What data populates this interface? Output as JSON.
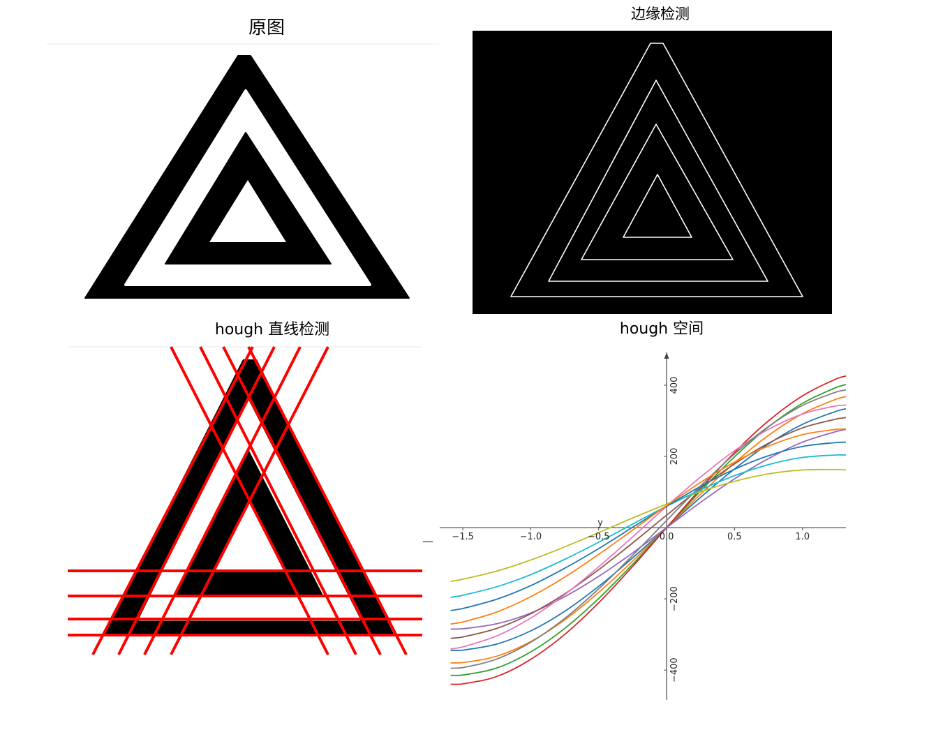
{
  "panels": {
    "original": {
      "title": "原图"
    },
    "edge_detection": {
      "title": "边缘检测"
    },
    "hough_lines": {
      "title": "hough 直线检测",
      "line_color": "#ff0000"
    }
  },
  "chart_data": {
    "type": "line",
    "title": "hough 空间",
    "xlim": [
      -1.67,
      1.32
    ],
    "ylim": [
      -484,
      492
    ],
    "grid": false,
    "legend": false,
    "x_ticks": [
      {
        "value": -1.5,
        "label": "−1.5"
      },
      {
        "value": -1.0,
        "label": "−1.0"
      },
      {
        "value": -0.5,
        "label": "−0.5"
      },
      {
        "value": 0,
        "label": "0.0"
      },
      {
        "value": 0.5,
        "label": "0.5"
      },
      {
        "value": 1.0,
        "label": "1.0"
      }
    ],
    "y_ticks": [
      {
        "value": 400,
        "label": "400"
      },
      {
        "value": 200,
        "label": "200"
      },
      {
        "value": -200,
        "label": "−200"
      },
      {
        "value": -400,
        "label": "−400"
      }
    ],
    "annotations": [
      "y",
      "—"
    ],
    "x": [
      -1.59,
      -1.5,
      -1.25,
      -1.0,
      -0.75,
      -0.5,
      -0.25,
      0,
      0.25,
      0.5,
      0.75,
      1.0,
      1.25,
      1.32
    ],
    "series": [
      {
        "color": "#1f77b4",
        "values": [
          -345,
          -344,
          -327,
          -290,
          -235,
          -165,
          -85,
          0,
          85,
          165,
          235,
          290,
          327,
          334
        ]
      },
      {
        "color": "#ff7f0e",
        "values": [
          -380,
          -379,
          -361,
          -320,
          -259,
          -182,
          -94,
          0,
          94,
          182,
          259,
          320,
          361,
          368
        ]
      },
      {
        "color": "#2ca02c",
        "values": [
          -415,
          -414,
          -394,
          -349,
          -283,
          -199,
          -103,
          0,
          103,
          199,
          283,
          349,
          394,
          402
        ]
      },
      {
        "color": "#d62728",
        "values": [
          -440,
          -439,
          -418,
          -370,
          -300,
          -211,
          -109,
          0,
          109,
          211,
          300,
          370,
          418,
          426
        ]
      },
      {
        "color": "#9467bd",
        "values": [
          -285,
          -284,
          -270,
          -240,
          -194,
          -137,
          -71,
          0,
          71,
          137,
          194,
          240,
          270,
          276
        ]
      },
      {
        "color": "#8c564b",
        "values": [
          -311,
          -307,
          -283,
          -242,
          -186,
          -118,
          -43,
          35,
          111,
          179,
          237,
          280,
          305,
          309
        ]
      },
      {
        "color": "#e377c2",
        "values": [
          -341,
          -335,
          -304,
          -254,
          -188,
          -110,
          -26,
          60,
          142,
          216,
          276,
          319,
          342,
          344
        ]
      },
      {
        "color": "#7f7f7f",
        "values": [
          -395,
          -393,
          -369,
          -322,
          -255,
          -172,
          -78,
          20,
          117,
          207,
          284,
          343,
          381,
          387
        ]
      },
      {
        "color": "#bcbd22",
        "values": [
          -151,
          -145,
          -122,
          -91,
          -54,
          -14,
          27,
          66,
          101,
          130,
          151,
          162,
          163,
          162
        ]
      },
      {
        "color": "#17becf",
        "values": [
          -196,
          -190,
          -166,
          -132,
          -89,
          -41,
          10,
          60,
          106,
          146,
          177,
          197,
          204,
          204
        ]
      },
      {
        "color": "#1f77b4",
        "values": [
          -233,
          -227,
          -201,
          -163,
          -114,
          -59,
          1,
          60,
          116,
          164,
          202,
          228,
          239,
          240
        ]
      },
      {
        "color": "#ff7f0e",
        "values": [
          -271,
          -265,
          -237,
          -194,
          -139,
          -75,
          -7,
          62,
          127,
          184,
          229,
          261,
          276,
          277
        ]
      }
    ]
  }
}
